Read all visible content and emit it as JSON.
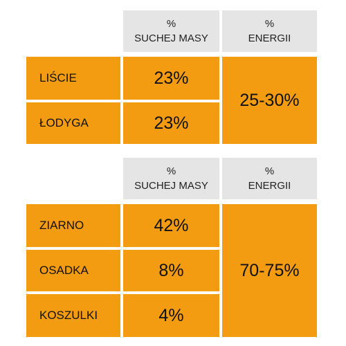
{
  "colors": {
    "header_bg": "#e5e5e5",
    "cell_bg": "#f39c12"
  },
  "tables": [
    {
      "headers": [
        {
          "symbol": "%",
          "label": "SUCHEJ MASY"
        },
        {
          "symbol": "%",
          "label": "ENERGII"
        }
      ],
      "rows": [
        {
          "label": "LIŚCIE",
          "dry_mass": "23%"
        },
        {
          "label": "ŁODYGA",
          "dry_mass": "23%"
        }
      ],
      "energy": "25-30%"
    },
    {
      "headers": [
        {
          "symbol": "%",
          "label": "SUCHEJ MASY"
        },
        {
          "symbol": "%",
          "label": "ENERGII"
        }
      ],
      "rows": [
        {
          "label": "ZIARNO",
          "dry_mass": "42%"
        },
        {
          "label": "OSADKA",
          "dry_mass": "8%"
        },
        {
          "label": "KOSZULKI",
          "dry_mass": "4%"
        }
      ],
      "energy": "70-75%"
    }
  ]
}
